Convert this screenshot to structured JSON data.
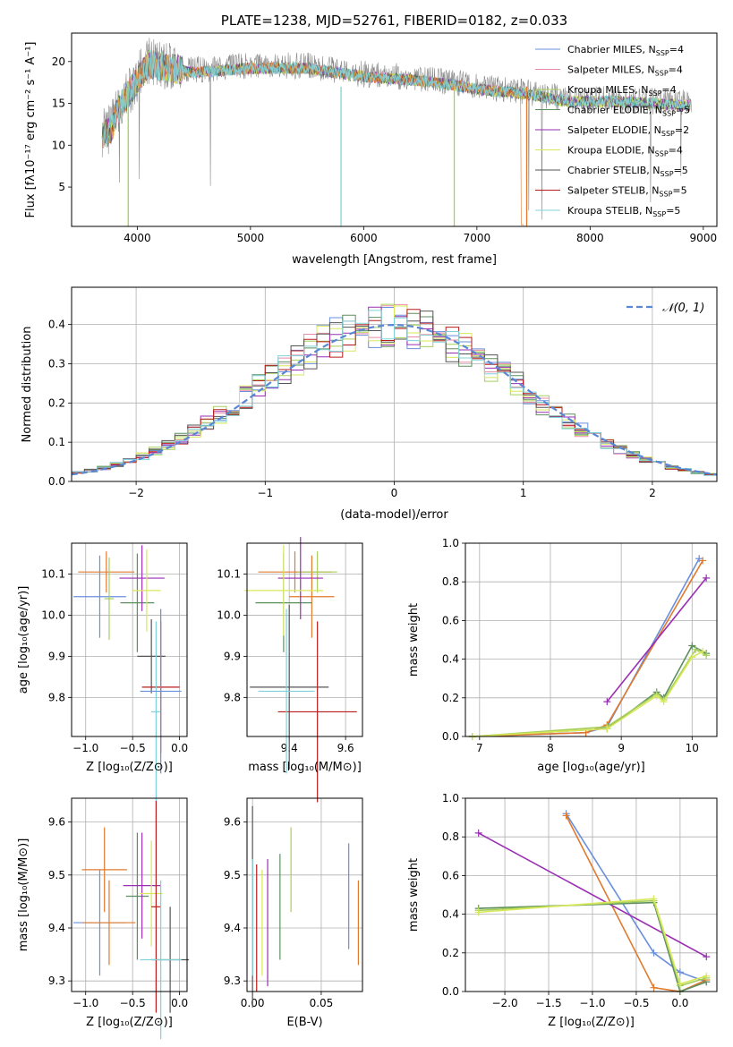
{
  "colors": [
    "#6a8fdc",
    "#e98aa6",
    "#a6cf5a",
    "#5e8f5e",
    "#9a2fb3",
    "#d8e85a",
    "#555555",
    "#b81d1d",
    "#7fd3d8"
  ],
  "orange": "#e07a2e",
  "legend_series": [
    {
      "name": "Chabrier MILES, N",
      "sub": "SSP",
      "eq": "=4"
    },
    {
      "name": "Salpeter MILES, N",
      "sub": "SSP",
      "eq": "=4"
    },
    {
      "name": "Kroupa MILES, N",
      "sub": "SSP",
      "eq": "=4"
    },
    {
      "name": "Chabrier ELODIE, N",
      "sub": "SSP",
      "eq": "=5"
    },
    {
      "name": "Salpeter ELODIE, N",
      "sub": "SSP",
      "eq": "=2"
    },
    {
      "name": "Kroupa ELODIE, N",
      "sub": "SSP",
      "eq": "=4"
    },
    {
      "name": "Chabrier STELIB, N",
      "sub": "SSP",
      "eq": "=5"
    },
    {
      "name": "Salpeter STELIB, N",
      "sub": "SSP",
      "eq": "=5"
    },
    {
      "name": "Kroupa STELIB, N",
      "sub": "SSP",
      "eq": "=5"
    }
  ],
  "chart_data": [
    {
      "id": "spectrum",
      "type": "line",
      "title": "PLATE=1238, MJD=52761, FIBERID=0182, z=0.033",
      "xlabel": "wavelength [Angstrom, rest frame]",
      "ylabel": "Flux [fλ10⁻¹⁷ erg cm⁻² s⁻¹ A⁻¹]",
      "xlim": [
        3420,
        9120
      ],
      "ylim": [
        0.3,
        23.4
      ],
      "xticks": [
        4000,
        5000,
        6000,
        7000,
        8000,
        9000
      ],
      "yticks": [
        5,
        10,
        15,
        20
      ],
      "data_envelope": [
        [
          3690,
          11.5
        ],
        [
          3760,
          12.0
        ],
        [
          3850,
          15.0
        ],
        [
          3950,
          17.0
        ],
        [
          4100,
          20.0
        ],
        [
          4300,
          19.5
        ],
        [
          4500,
          19.0
        ],
        [
          5000,
          19.5
        ],
        [
          5500,
          19.5
        ],
        [
          6000,
          18.5
        ],
        [
          6500,
          18.0
        ],
        [
          6800,
          17.5
        ],
        [
          7000,
          17.0
        ],
        [
          7400,
          16.5
        ],
        [
          7800,
          15.5
        ],
        [
          8300,
          15.5
        ],
        [
          8900,
          15.0
        ]
      ],
      "model_cutoff": 7420,
      "legend_position": "top-right"
    },
    {
      "id": "residuals",
      "type": "histogram",
      "xlabel": "(data-model)/error",
      "ylabel": "Normed distribution",
      "xlim": [
        -2.5,
        2.5
      ],
      "ylim": [
        0,
        0.495
      ],
      "xticks": [
        -2,
        -1,
        0,
        1,
        2
      ],
      "yticks": [
        0.0,
        0.1,
        0.2,
        0.3,
        0.4
      ],
      "legend": "𝒩(0, 1)",
      "legend_position": "top-right",
      "bin_width": 0.1
    },
    {
      "id": "age-vs-Z",
      "type": "errorbar",
      "xlabel": "Z [log₁₀(Z/Z⊙)]",
      "ylabel": "age  [log₁₀(age/yr)]",
      "xlim": [
        -1.15,
        0.08
      ],
      "ylim": [
        9.705,
        10.175
      ],
      "xticks": [
        -1.0,
        -0.5,
        0.0
      ],
      "yticks": [
        9.8,
        9.9,
        10.0,
        10.1
      ],
      "points": [
        {
          "x": -0.85,
          "xerr": 0.28,
          "y": 10.045,
          "yerr": 0.1
        },
        {
          "x": -0.78,
          "xerr": 0.3,
          "y": 10.105,
          "yerr": 0.05
        },
        {
          "x": -0.75,
          "xerr": 0.05,
          "y": 10.04,
          "yerr": 0.1
        },
        {
          "x": -0.45,
          "xerr": 0.18,
          "y": 10.03,
          "yerr": 0.12
        },
        {
          "x": -0.4,
          "xerr": 0.24,
          "y": 10.09,
          "yerr": 0.08
        },
        {
          "x": -0.35,
          "xerr": 0.15,
          "y": 10.06,
          "yerr": 0.1
        },
        {
          "x": -0.3,
          "xerr": 0.15,
          "y": 9.9,
          "yerr": 0.09
        },
        {
          "x": -0.2,
          "xerr": 0.2,
          "y": 9.825,
          "yerr": 0.16
        },
        {
          "x": -0.25,
          "xerr": 0.05,
          "y": 9.765,
          "yerr": 0.22
        },
        {
          "x": -0.2,
          "xerr": 0.22,
          "y": 9.815,
          "yerr": 0.2
        }
      ]
    },
    {
      "id": "age-vs-mass",
      "type": "errorbar",
      "xlabel": "mass [log₁₀(M/M⊙)]",
      "ylabel": "",
      "xlim": [
        9.25,
        9.66
      ],
      "ylim": [
        9.705,
        10.175
      ],
      "xticks": [
        9.4,
        9.6
      ],
      "yticks": [
        9.8,
        9.9,
        10.0,
        10.1
      ],
      "points": [
        {
          "x": 9.42,
          "xerr": 0.13,
          "y": 10.105,
          "yerr": 0.05
        },
        {
          "x": 9.48,
          "xerr": 0.08,
          "y": 10.045,
          "yerr": 0.1
        },
        {
          "x": 9.5,
          "xerr": 0.07,
          "y": 10.105,
          "yerr": 0.05
        },
        {
          "x": 9.38,
          "xerr": 0.1,
          "y": 10.03,
          "yerr": 0.12
        },
        {
          "x": 9.44,
          "xerr": 0.08,
          "y": 10.09,
          "yerr": 0.1
        },
        {
          "x": 9.38,
          "xerr": 0.14,
          "y": 10.06,
          "yerr": 0.11
        },
        {
          "x": 9.4,
          "xerr": 0.14,
          "y": 9.825,
          "yerr": 0.2
        },
        {
          "x": 9.5,
          "xerr": 0.14,
          "y": 9.765,
          "yerr": 0.22
        },
        {
          "x": 9.39,
          "xerr": 0.1,
          "y": 9.815,
          "yerr": 0.2
        }
      ]
    },
    {
      "id": "massweight-vs-age",
      "type": "line",
      "xlabel": "age  [log₁₀(age/yr)]",
      "ylabel": "mass weight",
      "xlim": [
        6.8,
        10.35
      ],
      "ylim": [
        0,
        1.0
      ],
      "xticks": [
        7,
        8,
        9,
        10
      ],
      "yticks": [
        0.0,
        0.2,
        0.4,
        0.6,
        0.8,
        1.0
      ],
      "series": [
        {
          "x": [
            6.9,
            8.5,
            8.8,
            10.1
          ],
          "y": [
            0.0,
            0.02,
            0.05,
            0.92
          ]
        },
        {
          "x": [
            6.9,
            8.5,
            8.8,
            10.15
          ],
          "y": [
            0.0,
            0.02,
            0.06,
            0.91
          ]
        },
        {
          "x": [
            8.8,
            10.2
          ],
          "y": [
            0.18,
            0.82
          ]
        },
        {
          "x": [
            6.9,
            8.8,
            9.5,
            9.6,
            10.0,
            10.2
          ],
          "y": [
            0.0,
            0.04,
            0.23,
            0.2,
            0.47,
            0.43
          ]
        },
        {
          "x": [
            6.9,
            8.8,
            9.5,
            9.6,
            10.05,
            10.2
          ],
          "y": [
            0.0,
            0.05,
            0.22,
            0.19,
            0.45,
            0.42
          ]
        },
        {
          "x": [
            6.9,
            8.8,
            9.5,
            9.6,
            10.0,
            10.15
          ],
          "y": [
            0.0,
            0.04,
            0.21,
            0.18,
            0.41,
            0.44
          ]
        }
      ]
    },
    {
      "id": "mass-vs-Z",
      "type": "errorbar",
      "xlabel": "Z [log₁₀(Z/Z⊙)]",
      "ylabel": "mass [log₁₀(M/M⊙)]",
      "xlim": [
        -1.15,
        0.08
      ],
      "ylim": [
        9.28,
        9.645
      ],
      "xticks": [
        -1.0,
        -0.5,
        0.0
      ],
      "yticks": [
        9.3,
        9.4,
        9.5,
        9.6
      ],
      "points": [
        {
          "x": -0.85,
          "xerr": 0.28,
          "y": 9.41,
          "yerr": 0.1
        },
        {
          "x": -0.8,
          "xerr": 0.24,
          "y": 9.51,
          "yerr": 0.08
        },
        {
          "x": -0.75,
          "xerr": 0.28,
          "y": 9.41,
          "yerr": 0.08
        },
        {
          "x": -0.45,
          "xerr": 0.12,
          "y": 9.46,
          "yerr": 0.12
        },
        {
          "x": -0.4,
          "xerr": 0.2,
          "y": 9.48,
          "yerr": 0.1
        },
        {
          "x": -0.3,
          "xerr": 0.12,
          "y": 9.465,
          "yerr": 0.1
        },
        {
          "x": -0.1,
          "xerr": 0.2,
          "y": 9.34,
          "yerr": 0.1
        },
        {
          "x": -0.25,
          "xerr": 0.05,
          "y": 9.44,
          "yerr": 0.2
        },
        {
          "x": -0.2,
          "xerr": 0.22,
          "y": 9.34,
          "yerr": 0.15
        }
      ]
    },
    {
      "id": "mass-vs-EBV",
      "type": "errorbar",
      "xlabel": "E(B-V)",
      "ylabel": "",
      "xlim": [
        -0.004,
        0.08
      ],
      "ylim": [
        9.28,
        9.645
      ],
      "xticks": [
        0.0,
        0.05
      ],
      "yticks": [
        9.3,
        9.4,
        9.5,
        9.6
      ],
      "points": [
        {
          "x": 0.07,
          "xerr": 0,
          "y": 9.46,
          "yerr": 0.1
        },
        {
          "x": 0.077,
          "xerr": 0,
          "y": 9.41,
          "yerr": 0.08
        },
        {
          "x": 0.028,
          "xerr": 0,
          "y": 9.51,
          "yerr": 0.08
        },
        {
          "x": 0.02,
          "xerr": 0,
          "y": 9.44,
          "yerr": 0.1
        },
        {
          "x": 0.011,
          "xerr": 0,
          "y": 9.41,
          "yerr": 0.12
        },
        {
          "x": 0.007,
          "xerr": 0,
          "y": 9.41,
          "yerr": 0.1
        },
        {
          "x": 0.0,
          "xerr": 0,
          "y": 9.44,
          "yerr": 0.19
        },
        {
          "x": 0.003,
          "xerr": 0,
          "y": 9.4,
          "yerr": 0.12
        },
        {
          "x": 0.0,
          "xerr": 0,
          "y": 9.42,
          "yerr": 0.11
        }
      ]
    },
    {
      "id": "massweight-vs-Z",
      "type": "line",
      "xlabel": "Z [log₁₀(Z/Z⊙)]",
      "ylabel": "mass weight",
      "xlim": [
        -2.45,
        0.42
      ],
      "ylim": [
        0,
        1.0
      ],
      "xticks": [
        -2.0,
        -1.5,
        -1.0,
        -0.5,
        0.0
      ],
      "yticks": [
        0.0,
        0.2,
        0.4,
        0.6,
        0.8,
        1.0
      ],
      "series": [
        {
          "x": [
            -1.3,
            -0.3,
            0.0,
            0.3
          ],
          "y": [
            0.92,
            0.2,
            0.1,
            0.05
          ]
        },
        {
          "x": [
            -1.3,
            -0.3,
            0.0,
            0.3
          ],
          "y": [
            0.91,
            0.02,
            0.0,
            0.06
          ]
        },
        {
          "x": [
            -2.3,
            0.3
          ],
          "y": [
            0.82,
            0.18
          ]
        },
        {
          "x": [
            -2.3,
            -0.3,
            0.0,
            0.3
          ],
          "y": [
            0.43,
            0.46,
            0.0,
            0.05
          ]
        },
        {
          "x": [
            -2.3,
            -0.3,
            0.0,
            0.3
          ],
          "y": [
            0.42,
            0.47,
            0.03,
            0.07
          ]
        },
        {
          "x": [
            -2.3,
            -0.3,
            0.0,
            0.3
          ],
          "y": [
            0.41,
            0.48,
            0.04,
            0.08
          ]
        }
      ]
    }
  ]
}
